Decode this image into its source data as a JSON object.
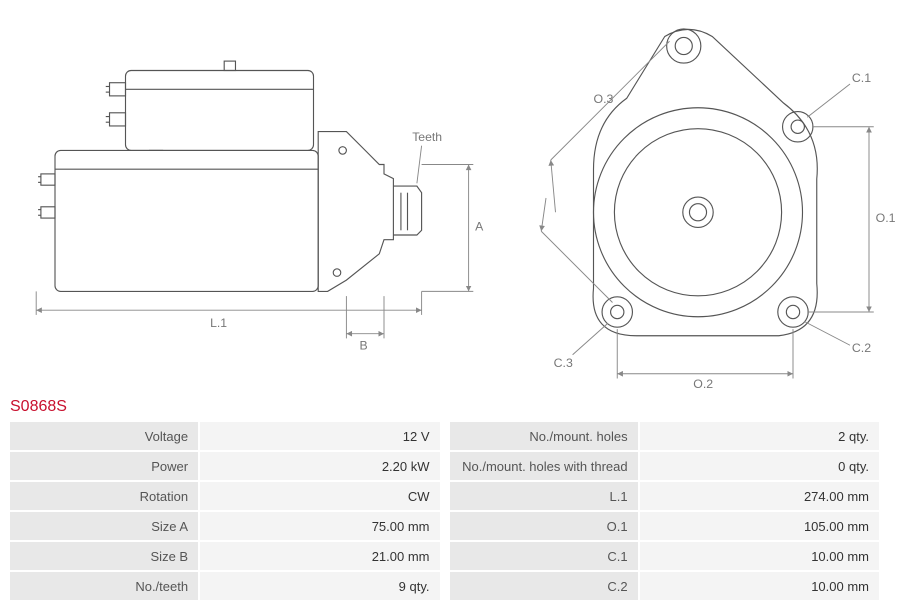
{
  "part_number": "S0868S",
  "diagram": {
    "type": "technical-drawing",
    "side_view": {
      "labels": {
        "teeth": "Teeth",
        "L1": "L.1",
        "A": "A",
        "B": "B"
      },
      "stroke_color": "#555555",
      "dim_color": "#888888",
      "label_color": "#777777",
      "fontsize": 13
    },
    "front_view": {
      "labels": {
        "O1": "O.1",
        "O2": "O.2",
        "O3": "O.3",
        "C1": "C.1",
        "C2": "C.2",
        "C3": "C.3"
      },
      "stroke_color": "#555555",
      "dim_color": "#888888",
      "label_color": "#777777",
      "fontsize": 13
    }
  },
  "specs_left": [
    {
      "label": "Voltage",
      "value": "12 V"
    },
    {
      "label": "Power",
      "value": "2.20 kW"
    },
    {
      "label": "Rotation",
      "value": "CW"
    },
    {
      "label": "Size A",
      "value": "75.00 mm"
    },
    {
      "label": "Size B",
      "value": "21.00 mm"
    },
    {
      "label": "No./teeth",
      "value": "9 qty."
    }
  ],
  "specs_right": [
    {
      "label": "No./mount. holes",
      "value": "2 qty."
    },
    {
      "label": "No./mount. holes with thread",
      "value": "0 qty."
    },
    {
      "label": "L.1",
      "value": "274.00 mm"
    },
    {
      "label": "O.1",
      "value": "105.00 mm"
    },
    {
      "label": "C.1",
      "value": "10.00 mm"
    },
    {
      "label": "C.2",
      "value": "10.00 mm"
    }
  ],
  "table_style": {
    "label_bg": "#e8e8e8",
    "value_bg": "#f4f4f4",
    "row_gap_color": "#ffffff",
    "label_fontsize": 13,
    "value_fontsize": 13
  }
}
